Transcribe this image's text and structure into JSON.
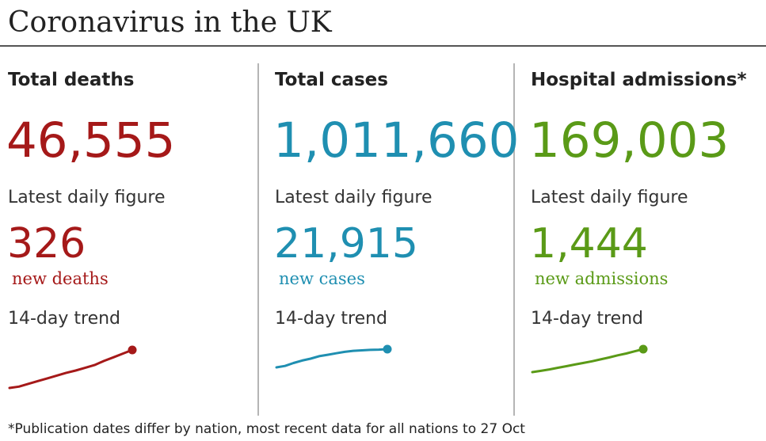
{
  "title": "Coronavirus in the UK",
  "footnote": "*Publication dates differ by nation, most recent data for all nations to 27 Oct",
  "colors": {
    "deaths": "#a51919",
    "cases": "#1f8fb1",
    "admissions": "#5a9a17"
  },
  "panels": [
    {
      "title": "Total deaths",
      "total": "46,555",
      "daily_caption": "Latest daily figure",
      "daily_value": "326",
      "daily_label": "new deaths",
      "trend_label": "14-day trend",
      "color": "#a51919"
    },
    {
      "title": "Total cases",
      "total": "1,011,660",
      "daily_caption": "Latest daily figure",
      "daily_value": "21,915",
      "daily_label": "new cases",
      "trend_label": "14-day trend",
      "color": "#1f8fb1"
    },
    {
      "title": "Hospital admissions*",
      "total": "169,003",
      "daily_caption": "Latest daily figure",
      "daily_value": "1,444",
      "daily_label": "new admissions",
      "trend_label": "14-day trend",
      "color": "#5a9a17"
    }
  ],
  "chart_data": [
    {
      "type": "line",
      "name": "deaths",
      "title": "14-day trend",
      "x": [
        1,
        2,
        3,
        4,
        5,
        6,
        7,
        8,
        9,
        10,
        11,
        12,
        13,
        14
      ],
      "values": [
        140,
        146,
        158,
        170,
        182,
        194,
        206,
        216,
        228,
        240,
        258,
        274,
        290,
        306
      ],
      "color": "#a51919"
    },
    {
      "type": "line",
      "name": "cases",
      "title": "14-day trend",
      "x": [
        1,
        2,
        3,
        4,
        5,
        6,
        7,
        8,
        9,
        10,
        11,
        12,
        13,
        14
      ],
      "values": [
        17500,
        17800,
        18400,
        18900,
        19300,
        19800,
        20100,
        20400,
        20700,
        20900,
        21000,
        21100,
        21150,
        21250
      ],
      "color": "#1f8fb1"
    },
    {
      "type": "line",
      "name": "admissions",
      "title": "14-day trend",
      "x": [
        1,
        2,
        3,
        4,
        5,
        6,
        7,
        8,
        9,
        10,
        11,
        12,
        13,
        14
      ],
      "values": [
        1100,
        1112,
        1125,
        1140,
        1155,
        1170,
        1185,
        1200,
        1218,
        1235,
        1255,
        1272,
        1292,
        1312
      ],
      "color": "#5a9a17"
    }
  ]
}
